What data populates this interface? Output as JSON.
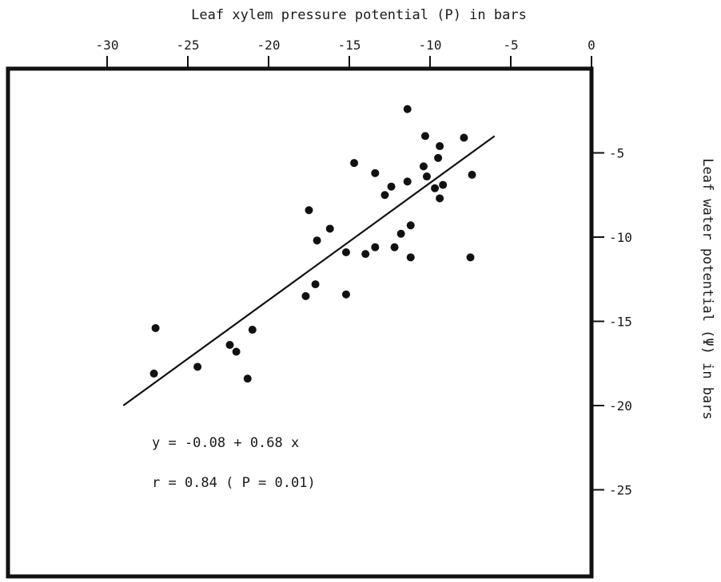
{
  "chart_data": {
    "type": "scatter",
    "title": "",
    "xlabel": "Leaf xylem pressure potential (P) in bars",
    "ylabel": "Leaf water potential (Ψ) in bars",
    "xlim": [
      -30,
      0
    ],
    "ylim": [
      -30,
      0
    ],
    "x_ticks": [
      "-30",
      "-25",
      "-20",
      "-15",
      "-10",
      "-5",
      "0"
    ],
    "y_ticks": [
      "-5",
      "-10",
      "-15",
      "-20",
      "-25"
    ],
    "x_axis_position": "top",
    "y_axis_position": "right",
    "grid": false,
    "points": [
      {
        "x": -27.0,
        "y": -15.4
      },
      {
        "x": -27.1,
        "y": -18.1
      },
      {
        "x": -24.4,
        "y": -17.7
      },
      {
        "x": -22.4,
        "y": -16.4
      },
      {
        "x": -22.0,
        "y": -16.8
      },
      {
        "x": -21.3,
        "y": -18.4
      },
      {
        "x": -21.0,
        "y": -15.5
      },
      {
        "x": -17.7,
        "y": -13.5
      },
      {
        "x": -17.1,
        "y": -12.8
      },
      {
        "x": -17.5,
        "y": -8.4
      },
      {
        "x": -17.0,
        "y": -10.2
      },
      {
        "x": -16.2,
        "y": -9.5
      },
      {
        "x": -15.2,
        "y": -10.9
      },
      {
        "x": -15.2,
        "y": -13.4
      },
      {
        "x": -14.7,
        "y": -5.6
      },
      {
        "x": -14.0,
        "y": -11.0
      },
      {
        "x": -13.4,
        "y": -10.6
      },
      {
        "x": -13.4,
        "y": -6.2
      },
      {
        "x": -12.8,
        "y": -7.5
      },
      {
        "x": -12.4,
        "y": -7.0
      },
      {
        "x": -12.2,
        "y": -10.6
      },
      {
        "x": -11.8,
        "y": -9.8
      },
      {
        "x": -11.4,
        "y": -2.4
      },
      {
        "x": -11.4,
        "y": -6.7
      },
      {
        "x": -11.2,
        "y": -9.3
      },
      {
        "x": -11.2,
        "y": -11.2
      },
      {
        "x": -10.4,
        "y": -5.8
      },
      {
        "x": -10.3,
        "y": -4.0
      },
      {
        "x": -10.2,
        "y": -6.4
      },
      {
        "x": -9.7,
        "y": -7.1
      },
      {
        "x": -9.5,
        "y": -5.3
      },
      {
        "x": -9.4,
        "y": -4.6
      },
      {
        "x": -9.4,
        "y": -7.7
      },
      {
        "x": -9.2,
        "y": -6.9
      },
      {
        "x": -7.9,
        "y": -4.1
      },
      {
        "x": -7.5,
        "y": -11.2
      },
      {
        "x": -7.4,
        "y": -6.3
      }
    ],
    "fit_line": {
      "x": [
        -29.0,
        -6.0
      ],
      "y": [
        -20.0,
        -4.0
      ]
    },
    "annotations": [
      "y = -0.08 + 0.68 x",
      "r = 0.84 ( P = 0.01)"
    ]
  }
}
